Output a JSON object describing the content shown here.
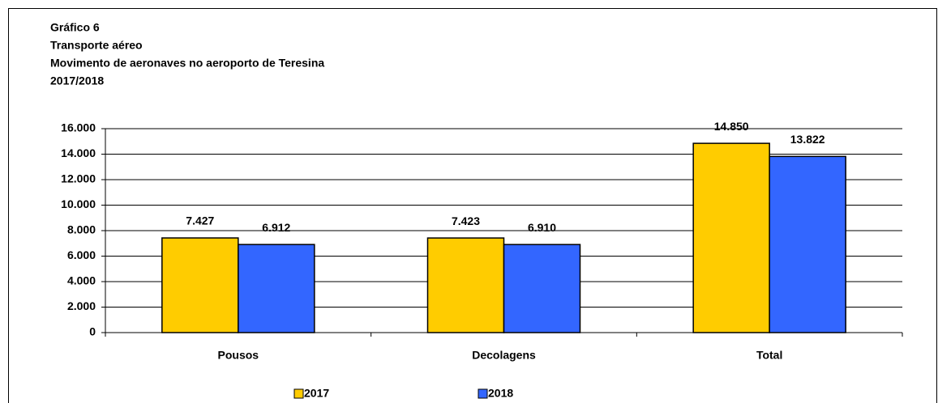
{
  "chart_data": {
    "type": "bar",
    "title_lines": [
      "Gráfico 6",
      "Transporte aéreo",
      "Movimento de aeronaves no aeroporto de Teresina",
      "2017/2018"
    ],
    "categories": [
      "Pousos",
      "Decolagens",
      "Total"
    ],
    "series": [
      {
        "name": "2017",
        "color": "#ffcc00",
        "values": [
          7427,
          7423,
          14850
        ],
        "value_labels": [
          "7.427",
          "7.423",
          "14.850"
        ]
      },
      {
        "name": "2018",
        "color": "#3366ff",
        "values": [
          6912,
          6910,
          13822
        ],
        "value_labels": [
          "6.912",
          "6.910",
          "13.822"
        ]
      }
    ],
    "ylim": [
      0,
      16000
    ],
    "yticks": [
      0,
      {
        "value": 2000,
        "label": "2.000"
      },
      {
        "value": 4000,
        "label": "4.000"
      },
      {
        "value": 6000,
        "label": "6.000"
      },
      {
        "value": 8000,
        "label": "8.000"
      },
      {
        "value": 10000,
        "label": "10.000"
      },
      {
        "value": 12000,
        "label": "12.000"
      },
      {
        "value": 14000,
        "label": "14.000"
      },
      {
        "value": 16000,
        "label": "16.000"
      }
    ],
    "grid": true
  }
}
